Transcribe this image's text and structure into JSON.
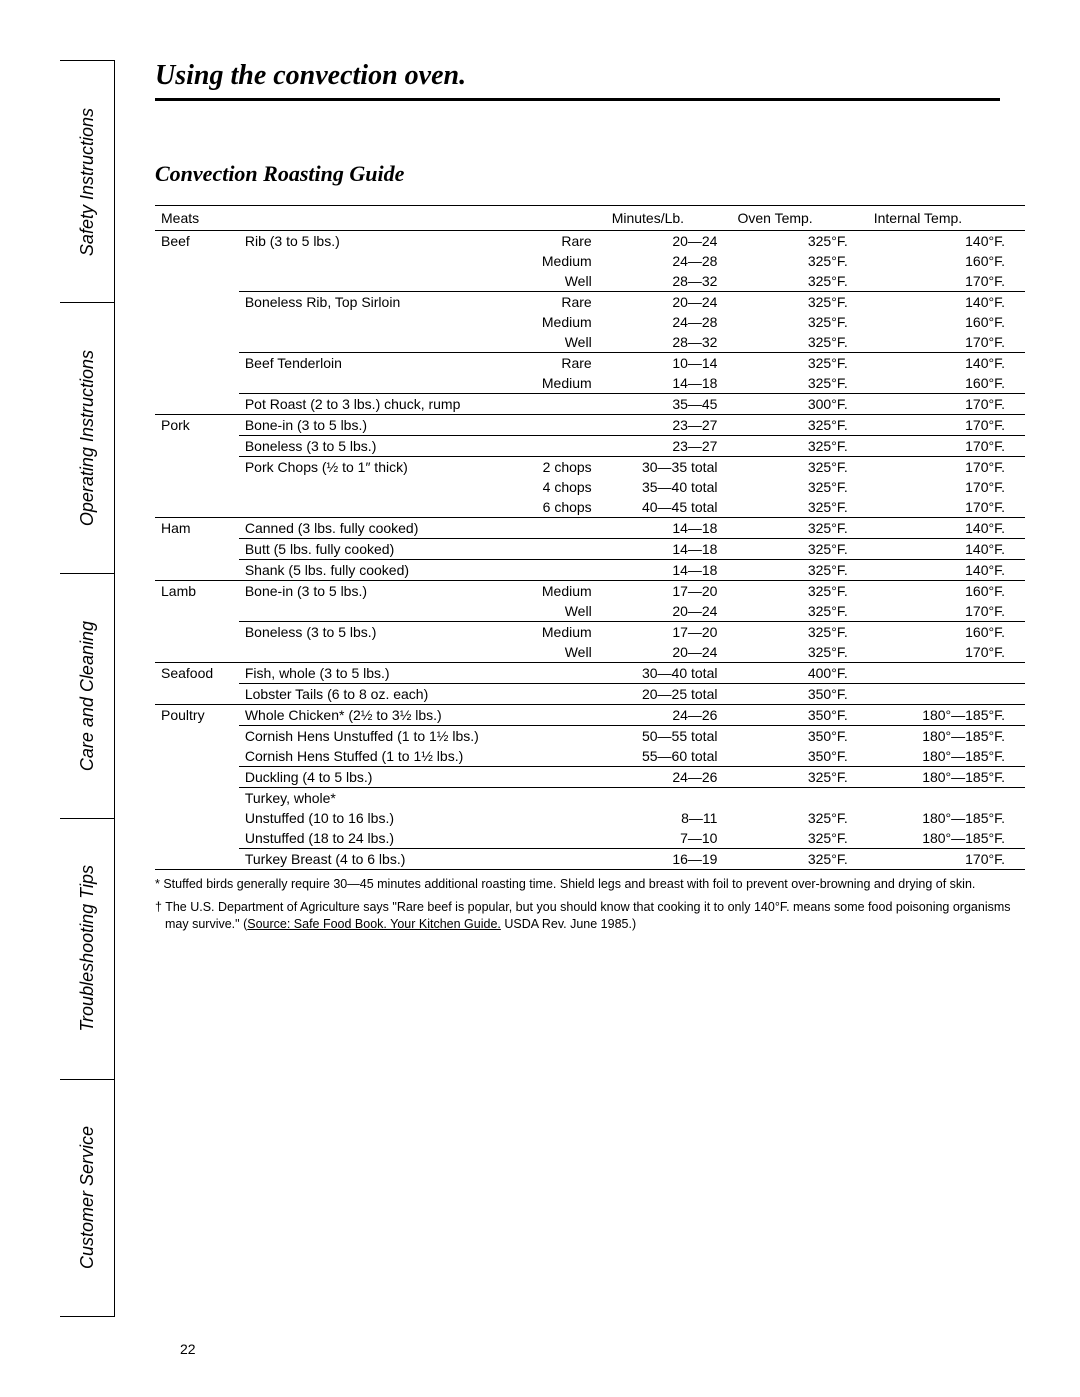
{
  "tabs": [
    "Safety Instructions",
    "Operating Instructions",
    "Care and Cleaning",
    "Troubleshooting Tips",
    "Customer Service"
  ],
  "title": "Using the convection oven.",
  "subtitle": "Convection Roasting Guide",
  "headers": {
    "c1": "Meats",
    "c2": "",
    "c3": "",
    "c4": "Minutes/Lb.",
    "c5": "Oven Temp.",
    "c6": "Internal Temp."
  },
  "rows": [
    {
      "type": "sec",
      "c1": "Beef",
      "c2": "Rib (3 to 5 lbs.)",
      "c3": "Rare",
      "c4": "20—24",
      "c5": "325°F.",
      "c6": "140°F."
    },
    {
      "type": "",
      "c1": "",
      "c2": "",
      "c3": "Medium",
      "c4": "24—28",
      "c5": "325°F.",
      "c6": "160°F."
    },
    {
      "type": "",
      "c1": "",
      "c2": "",
      "c3": "Well",
      "c4": "28—32",
      "c5": "325°F.",
      "c6": "170°F."
    },
    {
      "type": "sub",
      "c1": "",
      "c2": "Boneless Rib, Top Sirloin",
      "c3": "Rare",
      "c4": "20—24",
      "c5": "325°F.",
      "c6": "140°F."
    },
    {
      "type": "",
      "c1": "",
      "c2": "",
      "c3": "Medium",
      "c4": "24—28",
      "c5": "325°F.",
      "c6": "160°F."
    },
    {
      "type": "",
      "c1": "",
      "c2": "",
      "c3": "Well",
      "c4": "28—32",
      "c5": "325°F.",
      "c6": "170°F."
    },
    {
      "type": "sub",
      "c1": "",
      "c2": "Beef Tenderloin",
      "c3": "Rare",
      "c4": "10—14",
      "c5": "325°F.",
      "c6": "140°F."
    },
    {
      "type": "",
      "c1": "",
      "c2": "",
      "c3": "Medium",
      "c4": "14—18",
      "c5": "325°F.",
      "c6": "160°F."
    },
    {
      "type": "sub",
      "c1": "",
      "c2": "Pot Roast (2 to 3 lbs.) chuck, rump",
      "c3": "",
      "c4": "35—45",
      "c5": "300°F.",
      "c6": "170°F."
    },
    {
      "type": "sec",
      "c1": "Pork",
      "c2": "Bone-in (3 to 5 lbs.)",
      "c3": "",
      "c4": "23—27",
      "c5": "325°F.",
      "c6": "170°F."
    },
    {
      "type": "sub",
      "c1": "",
      "c2": "Boneless (3 to 5 lbs.)",
      "c3": "",
      "c4": "23—27",
      "c5": "325°F.",
      "c6": "170°F."
    },
    {
      "type": "sub",
      "c1": "",
      "c2": "Pork Chops (½ to 1″ thick)",
      "c3": "2 chops",
      "c4": "30—35 total",
      "c5": "325°F.",
      "c6": "170°F."
    },
    {
      "type": "",
      "c1": "",
      "c2": "",
      "c3": "4 chops",
      "c4": "35—40 total",
      "c5": "325°F.",
      "c6": "170°F."
    },
    {
      "type": "",
      "c1": "",
      "c2": "",
      "c3": "6 chops",
      "c4": "40—45 total",
      "c5": "325°F.",
      "c6": "170°F."
    },
    {
      "type": "sec",
      "c1": "Ham",
      "c2": "Canned (3 lbs. fully cooked)",
      "c3": "",
      "c4": "14—18",
      "c5": "325°F.",
      "c6": "140°F."
    },
    {
      "type": "sub",
      "c1": "",
      "c2": "Butt (5 lbs. fully cooked)",
      "c3": "",
      "c4": "14—18",
      "c5": "325°F.",
      "c6": "140°F."
    },
    {
      "type": "sub",
      "c1": "",
      "c2": "Shank (5 lbs. fully cooked)",
      "c3": "",
      "c4": "14—18",
      "c5": "325°F.",
      "c6": "140°F."
    },
    {
      "type": "sec",
      "c1": "Lamb",
      "c2": "Bone-in (3 to 5 lbs.)",
      "c3": "Medium",
      "c4": "17—20",
      "c5": "325°F.",
      "c6": "160°F."
    },
    {
      "type": "",
      "c1": "",
      "c2": "",
      "c3": "Well",
      "c4": "20—24",
      "c5": "325°F.",
      "c6": "170°F."
    },
    {
      "type": "sub",
      "c1": "",
      "c2": "Boneless (3 to 5 lbs.)",
      "c3": "Medium",
      "c4": "17—20",
      "c5": "325°F.",
      "c6": "160°F."
    },
    {
      "type": "",
      "c1": "",
      "c2": "",
      "c3": "Well",
      "c4": "20—24",
      "c5": "325°F.",
      "c6": "170°F."
    },
    {
      "type": "sec",
      "c1": "Seafood",
      "c2": "Fish, whole (3 to 5 lbs.)",
      "c3": "",
      "c4": "30—40 total",
      "c5": "400°F.",
      "c6": ""
    },
    {
      "type": "sub",
      "c1": "",
      "c2": "Lobster Tails (6 to 8 oz. each)",
      "c3": "",
      "c4": "20—25 total",
      "c5": "350°F.",
      "c6": ""
    },
    {
      "type": "sec",
      "c1": "Poultry",
      "c2": "Whole Chicken* (2½ to 3½ lbs.)",
      "c3": "",
      "c4": "24—26",
      "c5": "350°F.",
      "c6": "180°—185°F."
    },
    {
      "type": "sub",
      "c1": "",
      "c2": "Cornish Hens Unstuffed (1 to 1½ lbs.)",
      "c3": "",
      "c4": "50—55 total",
      "c5": "350°F.",
      "c6": "180°—185°F."
    },
    {
      "type": "",
      "c1": "",
      "c2": "Cornish Hens Stuffed (1 to 1½ lbs.)",
      "c3": "",
      "c4": "55—60 total",
      "c5": "350°F.",
      "c6": "180°—185°F."
    },
    {
      "type": "sub",
      "c1": "",
      "c2": "Duckling (4 to 5 lbs.)",
      "c3": "",
      "c4": "24—26",
      "c5": "325°F.",
      "c6": "180°—185°F."
    },
    {
      "type": "sub",
      "c1": "",
      "c2": "Turkey, whole*",
      "c3": "",
      "c4": "",
      "c5": "",
      "c6": ""
    },
    {
      "type": "",
      "c1": "",
      "c2": "Unstuffed (10 to 16 lbs.)",
      "c3": "",
      "c4": "8—11",
      "c5": "325°F.",
      "c6": "180°—185°F."
    },
    {
      "type": "",
      "c1": "",
      "c2": "Unstuffed (18 to 24 lbs.)",
      "c3": "",
      "c4": "7—10",
      "c5": "325°F.",
      "c6": "180°—185°F."
    },
    {
      "type": "sub last",
      "c1": "",
      "c2": "Turkey Breast (4 to 6 lbs.)",
      "c3": "",
      "c4": "16—19",
      "c5": "325°F.",
      "c6": "170°F."
    }
  ],
  "footnote1": "* Stuffed birds generally require 30—45 minutes additional roasting time. Shield legs and breast with foil to prevent over-browning and drying of skin.",
  "footnote2a": "† The U.S. Department of Agriculture says \"Rare beef is popular, but you should know that cooking it to only 140°F. means some food poisoning organisms may survive.\" (",
  "footnote2u": "Source: Safe Food Book. Your Kitchen Guide.",
  "footnote2b": " USDA Rev. June 1985.)",
  "pageNum": "22"
}
